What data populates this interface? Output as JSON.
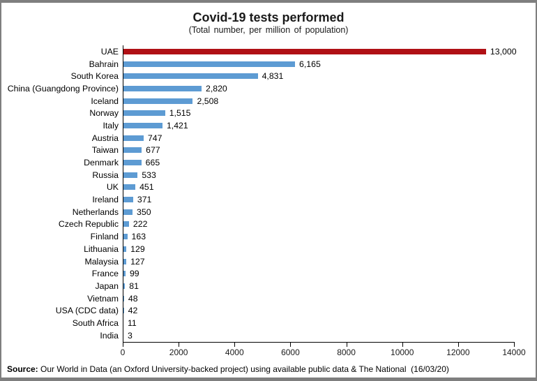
{
  "header": {
    "title": "Covid-19 tests performed",
    "subtitle": "(Total number, per million of population)"
  },
  "chart_data": {
    "type": "bar",
    "orientation": "horizontal",
    "title": "Covid-19 tests performed",
    "subtitle": "(Total number, per million of population)",
    "categories": [
      "UAE",
      "Bahrain",
      "South Korea",
      "China (Guangdong Province)",
      "Iceland",
      "Norway",
      "Italy",
      "Austria",
      "Taiwan",
      "Denmark",
      "Russia",
      "UK",
      "Ireland",
      "Netherlands",
      "Czech Republic",
      "Finland",
      "Lithuania",
      "Malaysia",
      "France",
      "Japan",
      "Vietnam",
      "USA (CDC data)",
      "South Africa",
      "India"
    ],
    "values": [
      13000,
      6165,
      4831,
      2820,
      2508,
      1515,
      1421,
      747,
      677,
      665,
      533,
      451,
      371,
      350,
      222,
      163,
      129,
      127,
      99,
      81,
      48,
      42,
      11,
      3
    ],
    "value_labels": [
      "13,000",
      "6,165",
      "4,831",
      "2,820",
      "2,508",
      "1,515",
      "1,421",
      "747",
      "677",
      "665",
      "533",
      "451",
      "371",
      "350",
      "222",
      "163",
      "129",
      "127",
      "99",
      "81",
      "48",
      "42",
      "11",
      "3"
    ],
    "xlim": [
      0,
      14000
    ],
    "x_ticks": [
      "0",
      "2000",
      "4000",
      "6000",
      "8000",
      "10000",
      "12000",
      "14000"
    ],
    "grid": false,
    "legend": false,
    "colors": {
      "bar_default": "#5D9BD3",
      "bar_highlight": "#B01015",
      "highlight_category": "UAE",
      "axis": "#000000",
      "window_border": "#7F7F7F"
    }
  },
  "footer": {
    "source_label": "Source:",
    "source_text": " Our World in Data (an Oxford University-backed project) using available public data & The National  (16/03/20)"
  }
}
